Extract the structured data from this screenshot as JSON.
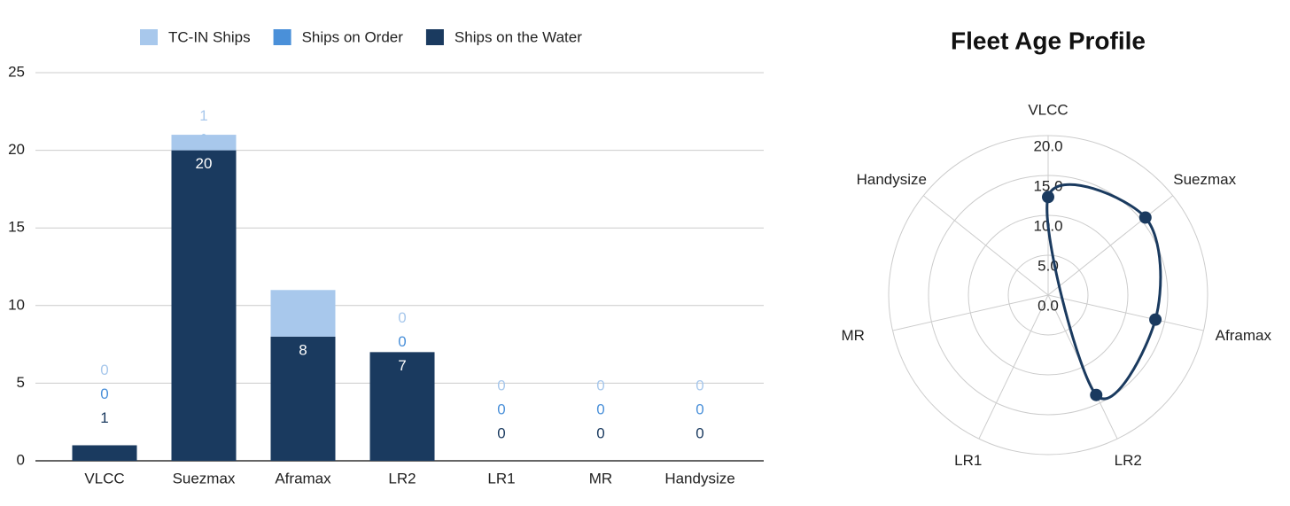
{
  "chart_data": [
    {
      "type": "bar",
      "stacked": true,
      "legend": "top",
      "grid": true,
      "categories": [
        "VLCC",
        "Suezmax",
        "Aframax",
        "LR2",
        "LR1",
        "MR",
        "Handysize"
      ],
      "series": [
        {
          "name": "Ships on the Water",
          "color": "#1a3a5f",
          "values": [
            1,
            20,
            8,
            7,
            0,
            0,
            0
          ]
        },
        {
          "name": "Ships on Order",
          "color": "#4a90d9",
          "values": [
            0,
            0,
            0,
            0,
            0,
            0,
            0
          ]
        },
        {
          "name": "TC-IN Ships",
          "color": "#a8c8ec",
          "values": [
            0,
            1,
            3,
            0,
            0,
            0,
            0
          ]
        }
      ],
      "ylim": [
        0,
        25
      ],
      "yticks": [
        0,
        5,
        10,
        15,
        20,
        25
      ]
    },
    {
      "type": "radar",
      "title": "Fleet Age Profile",
      "color": "#1a3a5f",
      "categories": [
        "VLCC",
        "Suezmax",
        "Aframax",
        "LR2",
        "LR1",
        "MR",
        "Handysize"
      ],
      "values": [
        12.3,
        15.6,
        13.8,
        13.9,
        null,
        null,
        null
      ],
      "rlim": [
        0,
        20
      ],
      "rticks": [
        {
          "value": 0,
          "label": "0.0"
        },
        {
          "value": 5,
          "label": "5.0"
        },
        {
          "value": 10,
          "label": "10.0"
        },
        {
          "value": 15,
          "label": "15.0"
        },
        {
          "value": 20,
          "label": "20.0"
        }
      ]
    }
  ]
}
